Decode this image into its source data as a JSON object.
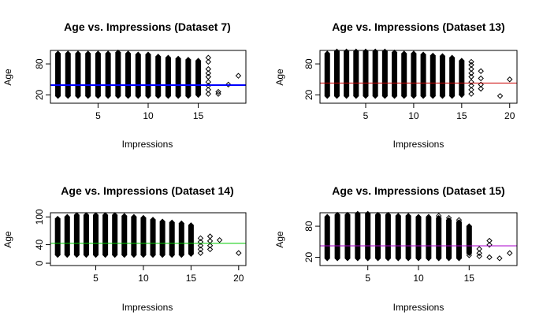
{
  "chart_data": [
    {
      "type": "scatter",
      "title": "Age vs. Impressions (Dataset 7)",
      "xlabel": "Impressions",
      "ylabel": "Age",
      "xlim": [
        0.25,
        19.75
      ],
      "ylim": [
        4,
        106
      ],
      "xticks": [
        5,
        10,
        15
      ],
      "yticks": [
        20,
        80
      ],
      "marker": "open-diamond",
      "reference_line": {
        "y": 39,
        "color": "#0000ff",
        "width": 2
      },
      "columns": [
        {
          "x": 1,
          "ymin": 18,
          "ymax": 100
        },
        {
          "x": 2,
          "ymin": 18,
          "ymax": 100
        },
        {
          "x": 3,
          "ymin": 18,
          "ymax": 100
        },
        {
          "x": 4,
          "ymin": 18,
          "ymax": 100
        },
        {
          "x": 5,
          "ymin": 18,
          "ymax": 100
        },
        {
          "x": 6,
          "ymin": 18,
          "ymax": 100
        },
        {
          "x": 7,
          "ymin": 18,
          "ymax": 102
        },
        {
          "x": 8,
          "ymin": 18,
          "ymax": 100
        },
        {
          "x": 9,
          "ymin": 18,
          "ymax": 98
        },
        {
          "x": 10,
          "ymin": 18,
          "ymax": 98
        },
        {
          "x": 11,
          "ymin": 18,
          "ymax": 94
        },
        {
          "x": 12,
          "ymin": 18,
          "ymax": 92
        },
        {
          "x": 13,
          "ymin": 18,
          "ymax": 90
        },
        {
          "x": 14,
          "ymin": 18,
          "ymax": 88
        },
        {
          "x": 15,
          "ymin": 20,
          "ymax": 86
        }
      ],
      "points": [
        {
          "x": 16,
          "y": 92
        },
        {
          "x": 16,
          "y": 84
        },
        {
          "x": 16,
          "y": 70
        },
        {
          "x": 16,
          "y": 62
        },
        {
          "x": 16,
          "y": 55
        },
        {
          "x": 16,
          "y": 45
        },
        {
          "x": 16,
          "y": 38
        },
        {
          "x": 16,
          "y": 30
        },
        {
          "x": 16,
          "y": 22
        },
        {
          "x": 17,
          "y": 26
        },
        {
          "x": 17,
          "y": 22
        },
        {
          "x": 18,
          "y": 40
        },
        {
          "x": 19,
          "y": 57
        }
      ]
    },
    {
      "type": "scatter",
      "title": "Age vs. Impressions (Dataset 13)",
      "xlabel": "Impressions",
      "ylabel": "Age",
      "xlim": [
        0.24,
        20.76
      ],
      "ylim": [
        4,
        106
      ],
      "xticks": [
        5,
        10,
        15,
        20
      ],
      "yticks": [
        20,
        80
      ],
      "marker": "open-diamond",
      "reference_line": {
        "y": 43,
        "color": "#cc0000",
        "width": 1
      },
      "columns": [
        {
          "x": 1,
          "ymin": 18,
          "ymax": 100
        },
        {
          "x": 2,
          "ymin": 18,
          "ymax": 104
        },
        {
          "x": 3,
          "ymin": 18,
          "ymax": 104
        },
        {
          "x": 4,
          "ymin": 18,
          "ymax": 104
        },
        {
          "x": 5,
          "ymin": 18,
          "ymax": 104
        },
        {
          "x": 6,
          "ymin": 18,
          "ymax": 104
        },
        {
          "x": 7,
          "ymin": 18,
          "ymax": 104
        },
        {
          "x": 8,
          "ymin": 18,
          "ymax": 102
        },
        {
          "x": 9,
          "ymin": 18,
          "ymax": 100
        },
        {
          "x": 10,
          "ymin": 18,
          "ymax": 100
        },
        {
          "x": 11,
          "ymin": 18,
          "ymax": 98
        },
        {
          "x": 12,
          "ymin": 18,
          "ymax": 96
        },
        {
          "x": 13,
          "ymin": 18,
          "ymax": 95
        },
        {
          "x": 14,
          "ymin": 18,
          "ymax": 92
        },
        {
          "x": 15,
          "ymin": 20,
          "ymax": 86
        }
      ],
      "points": [
        {
          "x": 14,
          "y": 86
        },
        {
          "x": 15,
          "y": 22
        },
        {
          "x": 16,
          "y": 84
        },
        {
          "x": 16,
          "y": 78
        },
        {
          "x": 16,
          "y": 70
        },
        {
          "x": 16,
          "y": 62
        },
        {
          "x": 16,
          "y": 55
        },
        {
          "x": 16,
          "y": 45
        },
        {
          "x": 16,
          "y": 38
        },
        {
          "x": 16,
          "y": 30
        },
        {
          "x": 16,
          "y": 22
        },
        {
          "x": 17,
          "y": 66
        },
        {
          "x": 17,
          "y": 52
        },
        {
          "x": 17,
          "y": 40
        },
        {
          "x": 17,
          "y": 32
        },
        {
          "x": 19,
          "y": 18
        },
        {
          "x": 20,
          "y": 50
        }
      ]
    },
    {
      "type": "scatter",
      "title": "Age vs. Impressions (Dataset 14)",
      "xlabel": "Impressions",
      "ylabel": "Age",
      "xlim": [
        0.24,
        20.76
      ],
      "ylim": [
        -5,
        109
      ],
      "xticks": [
        5,
        10,
        15,
        20
      ],
      "yticks": [
        0,
        40,
        100
      ],
      "marker": "open-diamond",
      "reference_line": {
        "y": 43,
        "color": "#00cc00",
        "width": 1
      },
      "columns": [
        {
          "x": 1,
          "ymin": 18,
          "ymax": 96
        },
        {
          "x": 2,
          "ymin": 18,
          "ymax": 100
        },
        {
          "x": 3,
          "ymin": 18,
          "ymax": 104
        },
        {
          "x": 4,
          "ymin": 18,
          "ymax": 104
        },
        {
          "x": 5,
          "ymin": 18,
          "ymax": 104
        },
        {
          "x": 6,
          "ymin": 18,
          "ymax": 104
        },
        {
          "x": 7,
          "ymin": 18,
          "ymax": 104
        },
        {
          "x": 8,
          "ymin": 18,
          "ymax": 102
        },
        {
          "x": 9,
          "ymin": 18,
          "ymax": 100
        },
        {
          "x": 10,
          "ymin": 18,
          "ymax": 98
        },
        {
          "x": 11,
          "ymin": 18,
          "ymax": 94
        },
        {
          "x": 12,
          "ymin": 18,
          "ymax": 90
        },
        {
          "x": 13,
          "ymin": 18,
          "ymax": 88
        },
        {
          "x": 14,
          "ymin": 18,
          "ymax": 86
        },
        {
          "x": 15,
          "ymin": 20,
          "ymax": 82
        }
      ],
      "points": [
        {
          "x": 16,
          "y": 54
        },
        {
          "x": 16,
          "y": 46
        },
        {
          "x": 16,
          "y": 38
        },
        {
          "x": 16,
          "y": 30
        },
        {
          "x": 16,
          "y": 22
        },
        {
          "x": 17,
          "y": 58
        },
        {
          "x": 17,
          "y": 48
        },
        {
          "x": 17,
          "y": 38
        },
        {
          "x": 17,
          "y": 30
        },
        {
          "x": 18,
          "y": 50
        },
        {
          "x": 20,
          "y": 22
        }
      ]
    },
    {
      "type": "scatter",
      "title": "Age vs. Impressions (Dataset 15)",
      "xlabel": "Impressions",
      "ylabel": "Age",
      "xlim": [
        0.28,
        19.72
      ],
      "ylim": [
        4,
        106
      ],
      "xticks": [
        5,
        10,
        15
      ],
      "yticks": [
        20,
        80
      ],
      "marker": "open-diamond",
      "reference_line": {
        "y": 42,
        "color": "#aa00cc",
        "width": 1
      },
      "columns": [
        {
          "x": 1,
          "ymin": 18,
          "ymax": 98
        },
        {
          "x": 2,
          "ymin": 18,
          "ymax": 102
        },
        {
          "x": 3,
          "ymin": 18,
          "ymax": 102
        },
        {
          "x": 4,
          "ymin": 18,
          "ymax": 104
        },
        {
          "x": 5,
          "ymin": 18,
          "ymax": 104
        },
        {
          "x": 6,
          "ymin": 18,
          "ymax": 102
        },
        {
          "x": 7,
          "ymin": 18,
          "ymax": 102
        },
        {
          "x": 8,
          "ymin": 18,
          "ymax": 100
        },
        {
          "x": 9,
          "ymin": 18,
          "ymax": 100
        },
        {
          "x": 10,
          "ymin": 18,
          "ymax": 98
        },
        {
          "x": 11,
          "ymin": 18,
          "ymax": 96
        },
        {
          "x": 12,
          "ymin": 18,
          "ymax": 96
        },
        {
          "x": 13,
          "ymin": 18,
          "ymax": 92
        },
        {
          "x": 14,
          "ymin": 18,
          "ymax": 88
        },
        {
          "x": 15,
          "ymin": 28,
          "ymax": 80
        }
      ],
      "points": [
        {
          "x": 11,
          "y": 98
        },
        {
          "x": 12,
          "y": 100
        },
        {
          "x": 13,
          "y": 96
        },
        {
          "x": 14,
          "y": 92
        },
        {
          "x": 15,
          "y": 24
        },
        {
          "x": 16,
          "y": 36
        },
        {
          "x": 16,
          "y": 28
        },
        {
          "x": 16,
          "y": 22
        },
        {
          "x": 17,
          "y": 52
        },
        {
          "x": 17,
          "y": 44
        },
        {
          "x": 17,
          "y": 20
        },
        {
          "x": 18,
          "y": 18
        },
        {
          "x": 19,
          "y": 28
        }
      ]
    }
  ]
}
